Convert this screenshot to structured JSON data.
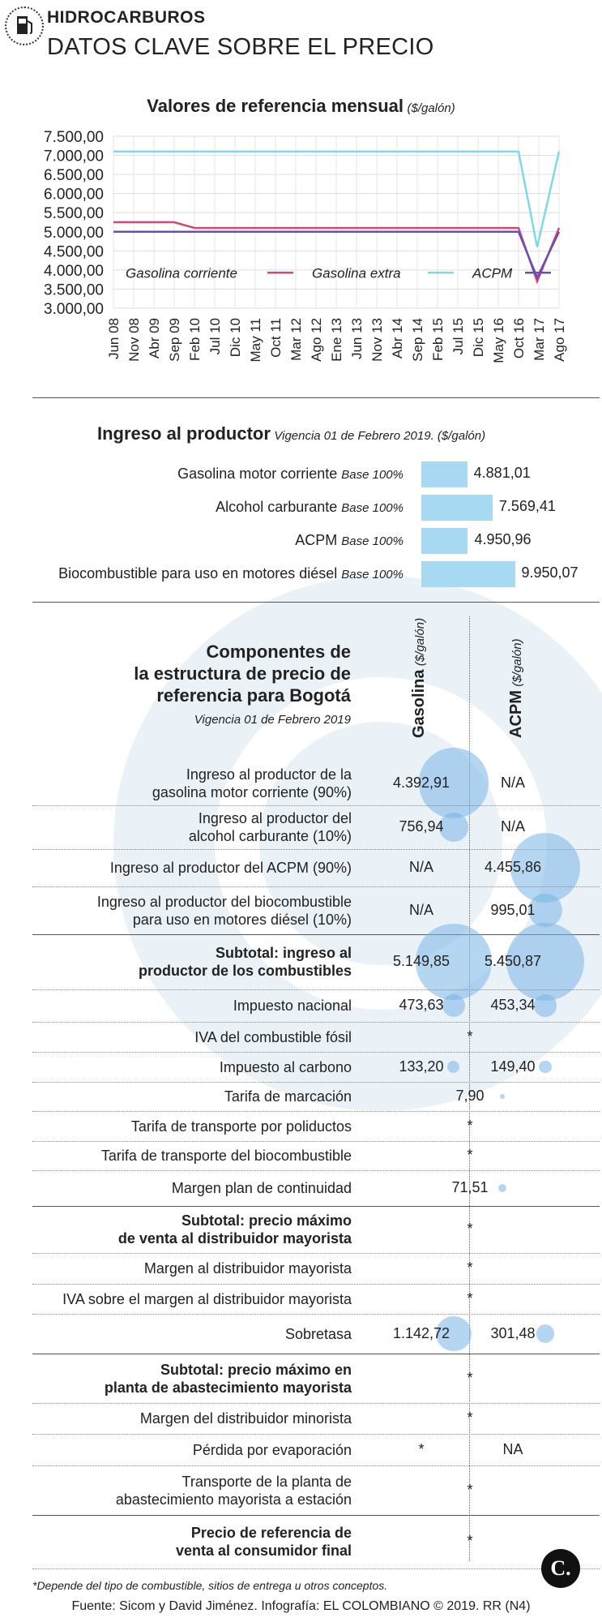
{
  "header": {
    "kicker": "HIDROCARBUROS",
    "title": "DATOS CLAVE SOBRE EL PRECIO"
  },
  "chart_data": [
    {
      "type": "line",
      "title": "Valores de referencia mensual",
      "unit": "($/galón)",
      "yticks": [
        "7.500,00",
        "7.000,00",
        "6.500,00",
        "6.000,00",
        "5.500,00",
        "5.000,00",
        "4.500,00",
        "4.000,00",
        "3.500,00",
        "3.000,00"
      ],
      "ylim": [
        3000,
        7500
      ],
      "x": [
        "Jun 08",
        "Nov 08",
        "Abr 09",
        "Sep 09",
        "Feb 10",
        "Jul 10",
        "Dic 10",
        "May 11",
        "Oct 11",
        "Mar 12",
        "Ago 12",
        "Ene 13",
        "Jun 13",
        "Nov 13",
        "Abr 14",
        "Sep 14",
        "Feb 15",
        "Jul 15",
        "Dic 15",
        "May 16",
        "Oct 16",
        "Mar 17",
        "Ago 17"
      ],
      "series": [
        {
          "name": "Gasolina corriente",
          "color": "#d6457a",
          "values": [
            5250,
            5250,
            5250,
            5250,
            5100,
            5100,
            5100,
            5100,
            5100,
            5100,
            5100,
            5100,
            5100,
            5100,
            5100,
            5100,
            5100,
            5100,
            5100,
            5100,
            5100,
            3700,
            5100
          ]
        },
        {
          "name": "Gasolina extra",
          "color": "#7fd8e8",
          "values": [
            7100,
            7100,
            7100,
            7100,
            7100,
            7100,
            7100,
            7100,
            7100,
            7100,
            7100,
            7100,
            7100,
            7100,
            7100,
            7100,
            7100,
            7100,
            7100,
            7100,
            7100,
            4600,
            7100
          ]
        },
        {
          "name": "ACPM",
          "color": "#6a4fb3",
          "values": [
            5000,
            5000,
            5000,
            5000,
            5000,
            5000,
            5000,
            5000,
            5000,
            5000,
            5000,
            5000,
            5000,
            5000,
            5000,
            5000,
            5000,
            5000,
            5000,
            5000,
            5000,
            3800,
            5000
          ]
        }
      ],
      "legend": "bottom",
      "grid": true
    },
    {
      "type": "bar",
      "title": "Ingreso al productor",
      "subtitle": "Vigencia 01 de Febrero 2019. ($/galón)",
      "categories": [
        "Gasolina motor corriente",
        "Alcohol carburante",
        "ACPM",
        "Biocombustible para uso en motores diésel"
      ],
      "base_label": "Base 100%",
      "values": [
        4881.01,
        7569.41,
        4950.96,
        9950.07
      ],
      "labels": [
        "4.881,01",
        "7.569,41",
        "4.950,96",
        "9.950,07"
      ],
      "color": "#a8d9f2"
    },
    {
      "type": "table",
      "title_lines": [
        "Componentes de",
        "la estructura de precio de",
        "referencia para Bogotá"
      ],
      "subtitle": "Vigencia 01 de Febrero 2019",
      "columns": [
        {
          "name": "Gasolina",
          "unit": "($/galón)"
        },
        {
          "name": "ACPM",
          "unit": "($/galón)"
        }
      ],
      "rows": [
        {
          "label": [
            "Ingreso al productor de la",
            "gasolina motor corriente (90%)"
          ],
          "g": "4.392,91",
          "a": "N/A",
          "gv": 4392.91,
          "av": 0
        },
        {
          "label": [
            "Ingreso al productor del",
            "alcohol carburante (10%)"
          ],
          "g": "756,94",
          "a": "N/A",
          "gv": 756.94,
          "av": 0
        },
        {
          "label": [
            "Ingreso al productor del ACPM (90%)"
          ],
          "g": "N/A",
          "a": "4.455,86",
          "gv": 0,
          "av": 4455.86
        },
        {
          "label": [
            "Ingreso al productor del biocombustible",
            "para uso en motores diésel (10%)"
          ],
          "g": "N/A",
          "a": "995,01",
          "gv": 0,
          "av": 995.01
        },
        {
          "label": [
            "Subtotal: ingreso al",
            "productor de los combustibles"
          ],
          "g": "5.149,85",
          "a": "5.450,87",
          "gv": 5149.85,
          "av": 5450.87,
          "bold": true
        },
        {
          "label": [
            "Impuesto nacional"
          ],
          "g": "473,63",
          "a": "453,34",
          "gv": 473.63,
          "av": 453.34
        },
        {
          "label": [
            "IVA del combustible fósil"
          ],
          "m": "*"
        },
        {
          "label": [
            "Impuesto al carbono"
          ],
          "g": "133,20",
          "a": "149,40",
          "gv": 133.2,
          "av": 149.4
        },
        {
          "label": [
            "Tarifa de marcación"
          ],
          "m": "7,90",
          "mv": 7.9
        },
        {
          "label": [
            "Tarifa de transporte por poliductos"
          ],
          "m": "*"
        },
        {
          "label": [
            "Tarifa de transporte del biocombustible"
          ],
          "m": "*"
        },
        {
          "label": [
            "Margen plan de continuidad"
          ],
          "m": "71,51",
          "mv": 71.51
        },
        {
          "label": [
            "Subtotal: precio máximo",
            "de venta al distribuidor mayorista"
          ],
          "m": "*",
          "bold": true
        },
        {
          "label": [
            "Margen al distribuidor mayorista"
          ],
          "m": "*"
        },
        {
          "label": [
            "IVA sobre el margen al distribuidor mayorista"
          ],
          "m": "*"
        },
        {
          "label": [
            "Sobretasa"
          ],
          "g": "1.142,72",
          "a": "301,48",
          "gv": 1142.72,
          "av": 301.48
        },
        {
          "label": [
            "Subtotal: precio máximo en",
            "planta de abastecimiento mayorista"
          ],
          "m": "*",
          "bold": true
        },
        {
          "label": [
            "Margen del distribuidor minorista"
          ],
          "m": "*"
        },
        {
          "label": [
            "Pérdida por evaporación"
          ],
          "g": "*",
          "a": "NA",
          "gv": 0,
          "av": 0
        },
        {
          "label": [
            "Transporte de la planta de",
            "abastecimiento mayorista a estación"
          ],
          "m": "*"
        },
        {
          "label": [
            "Precio de referencia de",
            "venta al consumidor final"
          ],
          "m": "*",
          "bold": true
        }
      ]
    }
  ],
  "footnote": "*Depende del tipo de combustible, sitios de entrega u otros conceptos.",
  "source": "Fuente: Sicom y David Jiménez. Infografía: EL COLOMBIANO © 2019. RR (N4)",
  "brand_mark": "C."
}
